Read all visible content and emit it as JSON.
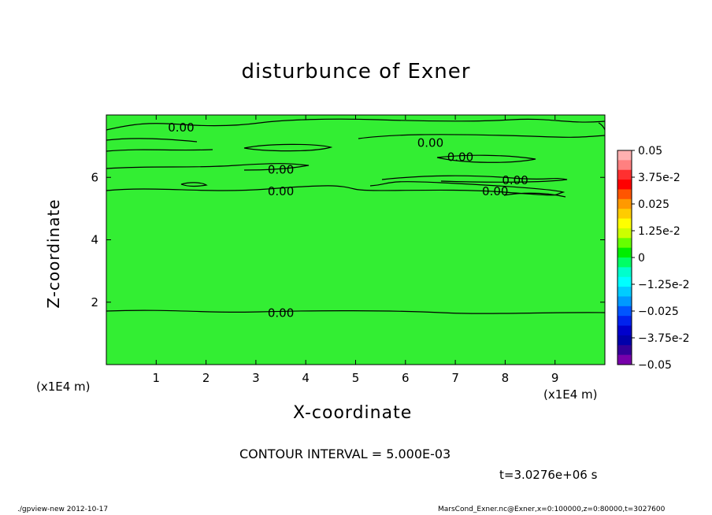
{
  "chart_data": {
    "type": "heatmap",
    "subtype": "contour",
    "title": "disturbunce of Exner",
    "xlabel": "X-coordinate",
    "ylabel": "Z-coordinate",
    "x_unit": "(x1E4 m)",
    "y_unit": "(x1E4 m)",
    "xlim": [
      0,
      10
    ],
    "ylim": [
      0,
      8
    ],
    "x_ticks": [
      1,
      2,
      3,
      4,
      5,
      6,
      7,
      8,
      9
    ],
    "y_ticks": [
      2,
      4,
      6
    ],
    "contour_interval": "CONTOUR INTERVAL = 5.000E-03",
    "contour_labels": [
      {
        "text": "0.00",
        "x": 1.5,
        "z": 7.6
      },
      {
        "text": "0.00",
        "x": 6.5,
        "z": 7.1
      },
      {
        "text": "0.00",
        "x": 7.1,
        "z": 6.65
      },
      {
        "text": "0.00",
        "x": 3.5,
        "z": 6.25
      },
      {
        "text": "0.00",
        "x": 8.2,
        "z": 5.9
      },
      {
        "text": "0.00",
        "x": 7.8,
        "z": 5.55
      },
      {
        "text": "0.00",
        "x": 3.5,
        "z": 5.55
      },
      {
        "text": "0.00",
        "x": 3.5,
        "z": 1.65
      }
    ],
    "background_value": 0,
    "field_color": "#33ee33",
    "colorbar": {
      "labels": [
        "0.05",
        "3.75e-2",
        "0.025",
        "1.25e-2",
        "0",
        "−1.25e-2",
        "−0.025",
        "−3.75e-2",
        "−0.05"
      ],
      "colors": [
        "#ffb0b0",
        "#ff8080",
        "#ff3030",
        "#ff0000",
        "#ff5500",
        "#ff9900",
        "#ffcc00",
        "#ffff00",
        "#ccff00",
        "#66ff00",
        "#00ee00",
        "#00ff66",
        "#00ffcc",
        "#00ffff",
        "#00ccff",
        "#0099ff",
        "#0055ff",
        "#0022ee",
        "#0000cc",
        "#0000aa",
        "#330099",
        "#7700aa"
      ]
    }
  },
  "time_label": "t=3.0276e+06 s",
  "footer": {
    "left": "./gpview-new   2012-10-17",
    "right": "MarsCond_Exner.nc@Exner,x=0:100000,z=0:80000,t=3027600"
  }
}
